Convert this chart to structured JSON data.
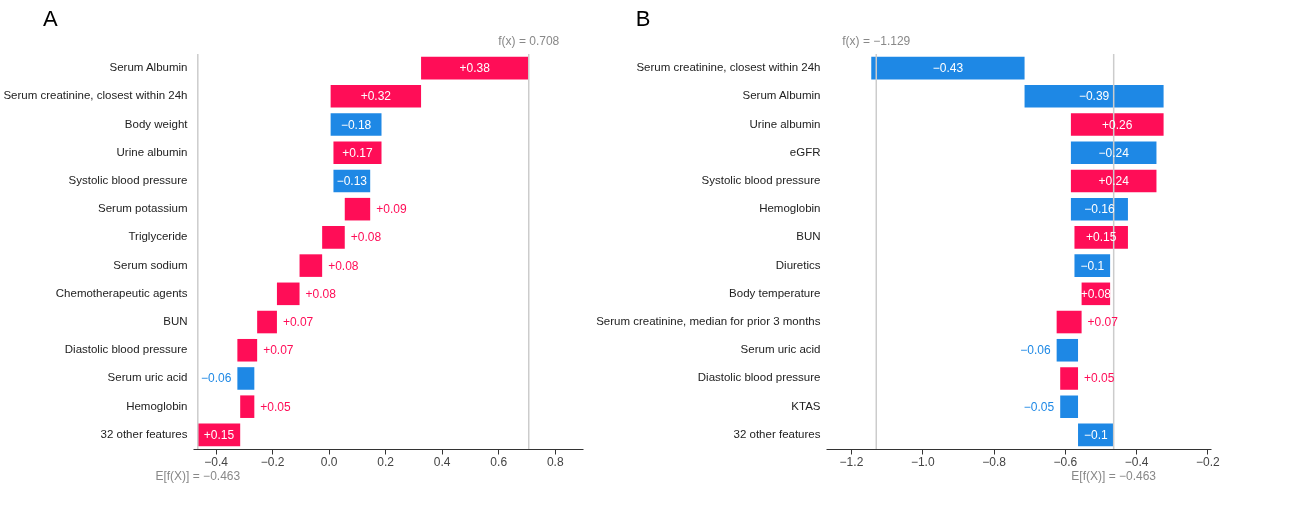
{
  "chart_data": [
    {
      "type": "bar",
      "orientation": "horizontal",
      "title": "A",
      "categories": [
        "Serum Albumin",
        "Serum creatinine, closest within 24h",
        "Body weight",
        "Urine albumin",
        "Systolic blood pressure",
        "Serum potassium",
        "Triglyceride",
        "Serum sodium",
        "Chemotherapeutic agents",
        "BUN",
        "Diastolic blood pressure",
        "Serum uric acid",
        "Hemoglobin",
        "32 other features"
      ],
      "values": [
        0.38,
        0.32,
        -0.18,
        0.17,
        -0.13,
        0.09,
        0.08,
        0.08,
        0.08,
        0.07,
        0.07,
        -0.06,
        0.05,
        0.15
      ],
      "base": [
        0.327,
        0.007,
        0.187,
        0.017,
        0.147,
        0.057,
        -0.023,
        -0.103,
        -0.183,
        -0.253,
        -0.323,
        -0.263,
        -0.313,
        -0.463
      ],
      "colors": [
        "#ff0d57",
        "#ff0d57",
        "#1e88e5",
        "#ff0d57",
        "#1e88e5",
        "#ff0d57",
        "#ff0d57",
        "#ff0d57",
        "#ff0d57",
        "#ff0d57",
        "#ff0d57",
        "#1e88e5",
        "#ff0d57",
        "#ff0d57"
      ],
      "value_labels": [
        "+0.38",
        "+0.32",
        "−0.18",
        "+0.17",
        "−0.13",
        "+0.09",
        "+0.08",
        "+0.08",
        "+0.08",
        "+0.07",
        "+0.07",
        "−0.06",
        "+0.05",
        "+0.15"
      ],
      "xlim": [
        -0.48,
        0.9
      ],
      "xticks": [
        -0.4,
        -0.2,
        {
          "value": 0,
          "label": "0.0"
        },
        0.2,
        0.4,
        0.6,
        0.8
      ],
      "ref_lines": [
        {
          "axis": "x",
          "value": 0.708,
          "label": "f(x) = 0.708",
          "color": "#cccccc"
        },
        {
          "axis": "x",
          "value": -0.463,
          "label": "E[f(X)] = −0.463",
          "color": "#cccccc"
        }
      ]
    },
    {
      "type": "bar",
      "orientation": "horizontal",
      "title": "B",
      "categories": [
        "Serum creatinine, closest within 24h",
        "Serum Albumin",
        "Urine albumin",
        "eGFR",
        "Systolic blood pressure",
        "Hemoglobin",
        "BUN",
        "Diuretics",
        "Body temperature",
        "Serum creatinine, median for prior 3 months",
        "Serum uric acid",
        "Diastolic blood pressure",
        "KTAS",
        "32 other features"
      ],
      "values": [
        -0.43,
        -0.39,
        0.26,
        -0.24,
        0.24,
        -0.16,
        0.15,
        -0.1,
        0.08,
        0.07,
        -0.06,
        0.05,
        -0.05,
        -0.1
      ],
      "base": [
        -0.713,
        -0.323,
        -0.583,
        -0.343,
        -0.583,
        -0.423,
        -0.573,
        -0.473,
        -0.553,
        -0.623,
        -0.563,
        -0.613,
        -0.563,
        -0.463
      ],
      "colors": [
        "#1e88e5",
        "#1e88e5",
        "#ff0d57",
        "#1e88e5",
        "#ff0d57",
        "#1e88e5",
        "#ff0d57",
        "#1e88e5",
        "#ff0d57",
        "#ff0d57",
        "#1e88e5",
        "#ff0d57",
        "#1e88e5",
        "#1e88e5"
      ],
      "value_labels": [
        "−0.43",
        "−0.39",
        "+0.26",
        "−0.24",
        "+0.24",
        "−0.16",
        "+0.15",
        "−0.1",
        "+0.08",
        "+0.07",
        "−0.06",
        "+0.05",
        "−0.05",
        "−0.1"
      ],
      "xlim": [
        -1.27,
        -0.19
      ],
      "xticks": [
        -1.2,
        {
          "value": -1.0,
          "label": "−1.0"
        },
        -0.8,
        -0.6,
        -0.4,
        -0.2
      ],
      "ref_lines": [
        {
          "axis": "x",
          "value": -1.129,
          "label": "f(x) = −1.129",
          "color": "#cccccc"
        },
        {
          "axis": "x",
          "value": -0.463,
          "label": "E[f(X)] = −0.463",
          "color": "#cccccc"
        }
      ]
    }
  ]
}
